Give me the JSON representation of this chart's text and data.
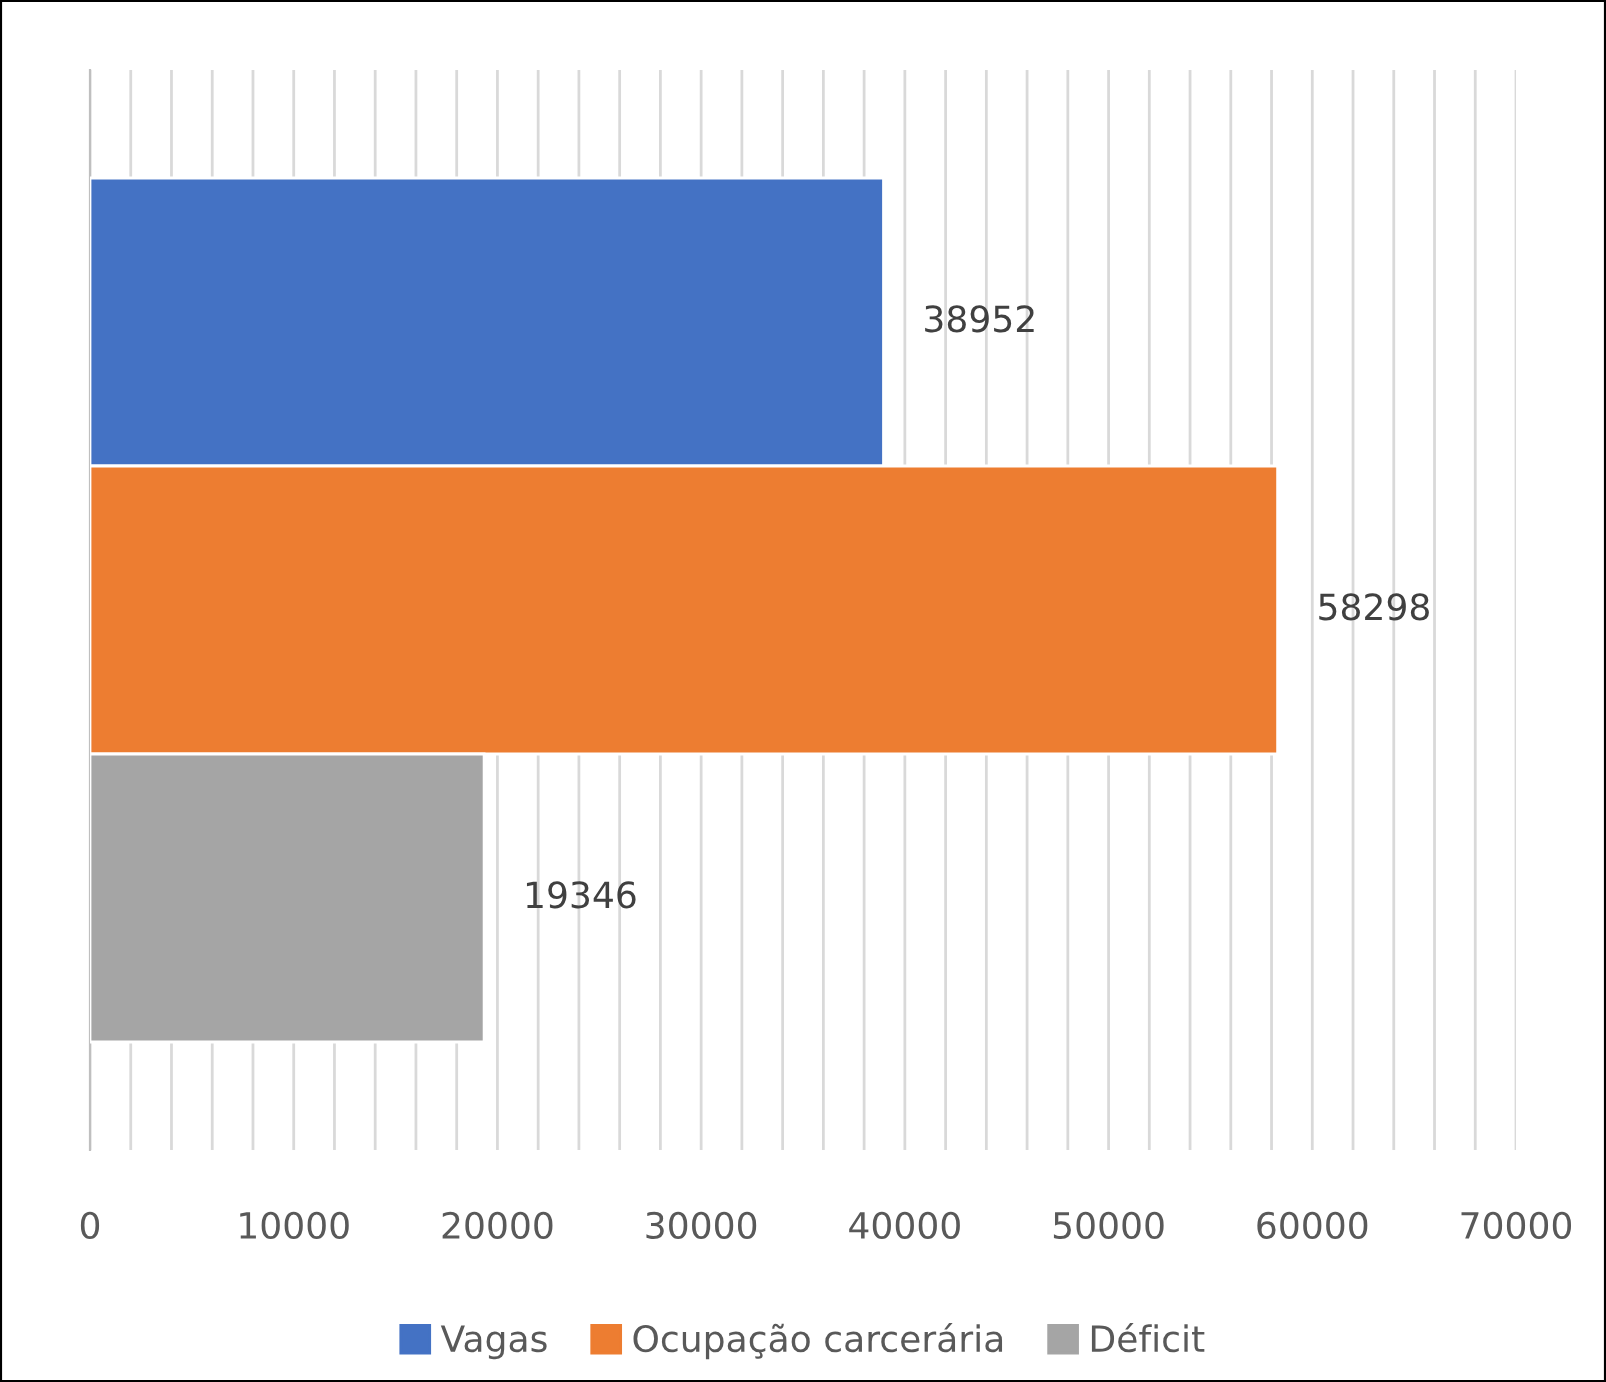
{
  "chart_data": {
    "type": "bar",
    "orientation": "horizontal",
    "categories": [
      null
    ],
    "series": [
      {
        "name": "Vagas",
        "color": "#4472c4",
        "values": [
          38952
        ]
      },
      {
        "name": "Ocupação carcerária",
        "color": "#ed7d31",
        "values": [
          58298
        ]
      },
      {
        "name": "Déficit",
        "color": "#a5a5a5",
        "values": [
          19346
        ]
      }
    ],
    "xlim": [
      0,
      70000
    ],
    "xticks": [
      0,
      {
        "value": 2000,
        "label": null
      },
      {
        "value": 4000,
        "label": null
      },
      {
        "value": 6000,
        "label": null
      },
      {
        "value": 8000,
        "label": null
      },
      10000,
      {
        "value": 12000,
        "label": null
      },
      {
        "value": 14000,
        "label": null
      },
      {
        "value": 16000,
        "label": null
      },
      {
        "value": 18000,
        "label": null
      },
      20000,
      {
        "value": 22000,
        "label": null
      },
      {
        "value": 24000,
        "label": null
      },
      {
        "value": 26000,
        "label": null
      },
      {
        "value": 28000,
        "label": null
      },
      30000,
      {
        "value": 32000,
        "label": null
      },
      {
        "value": 34000,
        "label": null
      },
      {
        "value": 36000,
        "label": null
      },
      {
        "value": 38000,
        "label": null
      },
      40000,
      {
        "value": 42000,
        "label": null
      },
      {
        "value": 44000,
        "label": null
      },
      {
        "value": 46000,
        "label": null
      },
      {
        "value": 48000,
        "label": null
      },
      50000,
      {
        "value": 52000,
        "label": null
      },
      {
        "value": 54000,
        "label": null
      },
      {
        "value": 56000,
        "label": null
      },
      {
        "value": 58000,
        "label": null
      },
      60000,
      {
        "value": 62000,
        "label": null
      },
      {
        "value": 64000,
        "label": null
      },
      {
        "value": 66000,
        "label": null
      },
      {
        "value": 68000,
        "label": null
      },
      70000
    ],
    "grid": "x",
    "data_labels": true,
    "legend": "bottom"
  }
}
